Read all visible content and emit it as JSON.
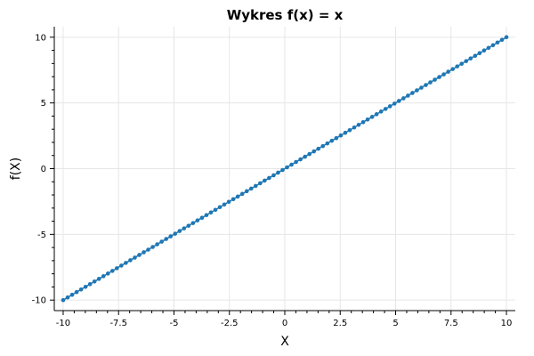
{
  "chart_data": {
    "type": "line",
    "title": "Wykres f(x) = x",
    "xlabel": "X",
    "ylabel": "f(X)",
    "xlim": [
      -10.4,
      10.4
    ],
    "ylim": [
      -10.8,
      10.8
    ],
    "grid": true,
    "x_ticks": [
      -10,
      -7.5,
      -5,
      -2.5,
      0,
      2.5,
      5,
      7.5,
      10
    ],
    "x_tick_labels": [
      "-10",
      "-7.5",
      "-5",
      "-2.5",
      "0",
      "2.5",
      "5",
      "7.5",
      "10"
    ],
    "y_ticks": [
      -10,
      -5,
      0,
      5,
      10
    ],
    "y_tick_labels": [
      "-10",
      "-5",
      "0",
      "5",
      "10"
    ],
    "series": [
      {
        "color": "#1f77b4",
        "function": "f(x) = x",
        "x_start": -10,
        "x_end": 10,
        "num_points": 100,
        "markers": "circle"
      }
    ]
  }
}
